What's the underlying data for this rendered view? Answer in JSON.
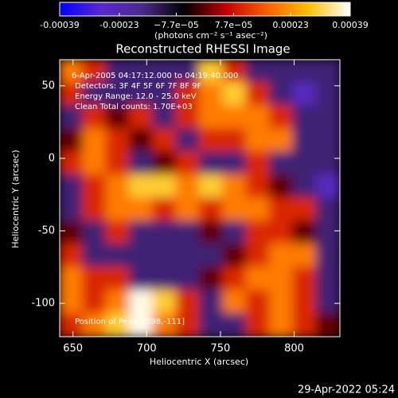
{
  "chart_data": {
    "type": "heatmap",
    "title": "Reconstructed RHESSI Image",
    "xlabel": "Heliocentric X (arcsec)",
    "ylabel": "Heliocentric Y (arcsec)",
    "colorbar_label": "(photons cm⁻² s⁻¹ asec⁻²)",
    "date": "29-Apr-2022 05:24",
    "annotations": [
      "6-Apr-2005 04:17:12.000 to 04:19:40.000",
      "Detectors: 3F 4F 5F 6F 7F 8F 9F",
      "Energy Range: 12.0 - 25.0 keV",
      "Clean    Total counts: 1.70E+03"
    ],
    "peak_label": "Position of Peak: [698,-111]",
    "xlim": [
      641,
      831
    ],
    "ylim": [
      -123,
      68
    ],
    "xticks": [
      650,
      700,
      750,
      800
    ],
    "yticks": [
      -100,
      -50,
      0,
      50
    ],
    "zlim": [
      -0.00039,
      0.00039
    ],
    "zticks": [
      -0.00039,
      -0.00023,
      {
        "value": -7.7e-05,
        "label": "−7.7e−05"
      },
      {
        "value": 7.7e-05,
        "label": "7.7e−05"
      },
      0.00023,
      0.00039
    ],
    "colormap": [
      "#0000ff",
      "#5a28d0",
      "#4a2a8a",
      "#000000",
      "#c00000",
      "#ff6000",
      "#ffc000",
      "#ffffff"
    ],
    "values": [
      [
        0.0002,
        0.0001,
        -0.00015,
        -0.00015,
        -0.00015,
        -0.00015,
        0.0003,
        0.0001,
        -0.00015,
        -0.00015,
        -0.00015,
        -0.00015
      ],
      [
        0.0001,
        -0.00015,
        -0.00015,
        -0.00015,
        -0.00015,
        0.0001,
        0.0002,
        0.0003,
        0.0001,
        -0.00015,
        -0.00025,
        -0.00015
      ],
      [
        -0.00015,
        0.0001,
        0,
        0.0001,
        -0.00015,
        0.0001,
        0.0002,
        0.0002,
        0.0002,
        0.0001,
        -0.00015,
        -0.00015
      ],
      [
        0,
        0.0002,
        0.0001,
        0,
        0.0001,
        -0.00015,
        0.0001,
        0.0001,
        0.0002,
        0.0002,
        -0.00015,
        -0.00015
      ],
      [
        0.0001,
        0.0002,
        0.0001,
        -0.00015,
        0,
        0.0001,
        -0.00015,
        -0.00015,
        0.0001,
        -0.00015,
        -0.00015,
        -0.00015
      ],
      [
        -0.00015,
        0.0001,
        0.0002,
        0.0003,
        0.0003,
        0.0002,
        0.0003,
        0.0002,
        0.0001,
        0,
        -0.00015,
        -0.00025
      ],
      [
        -0.00015,
        0.0001,
        0.0002,
        0.0002,
        0.0001,
        0.0002,
        0.0001,
        0.0002,
        0.0002,
        0.0001,
        0.0001,
        -0.00015
      ],
      [
        0,
        -0.00015,
        0.0001,
        -0.00015,
        -0.00015,
        -0.00015,
        0,
        -0.00015,
        0.0001,
        0.0001,
        0,
        -0.00015
      ],
      [
        0.0001,
        -0.00015,
        -0.00015,
        -0.00015,
        -0.00015,
        -0.00015,
        -0.00015,
        0,
        0.0001,
        0.0002,
        0.0002,
        -0.00015
      ],
      [
        0.0002,
        0.0001,
        0.0001,
        -0.00015,
        -0.00015,
        -0.00015,
        0,
        0.0001,
        0.0002,
        0.0002,
        0.0001,
        -0.00015
      ],
      [
        0.0002,
        0.0001,
        0.0002,
        0.00038,
        0.0003,
        0.0001,
        -0.00015,
        0.0002,
        0.0001,
        0.0002,
        0.0001,
        -0.00015
      ],
      [
        0.0001,
        0.0002,
        0.0003,
        0.00038,
        0.0002,
        0.0001,
        -0.00015,
        -0.00015,
        0.0001,
        0.0002,
        0.0001,
        0
      ]
    ]
  }
}
